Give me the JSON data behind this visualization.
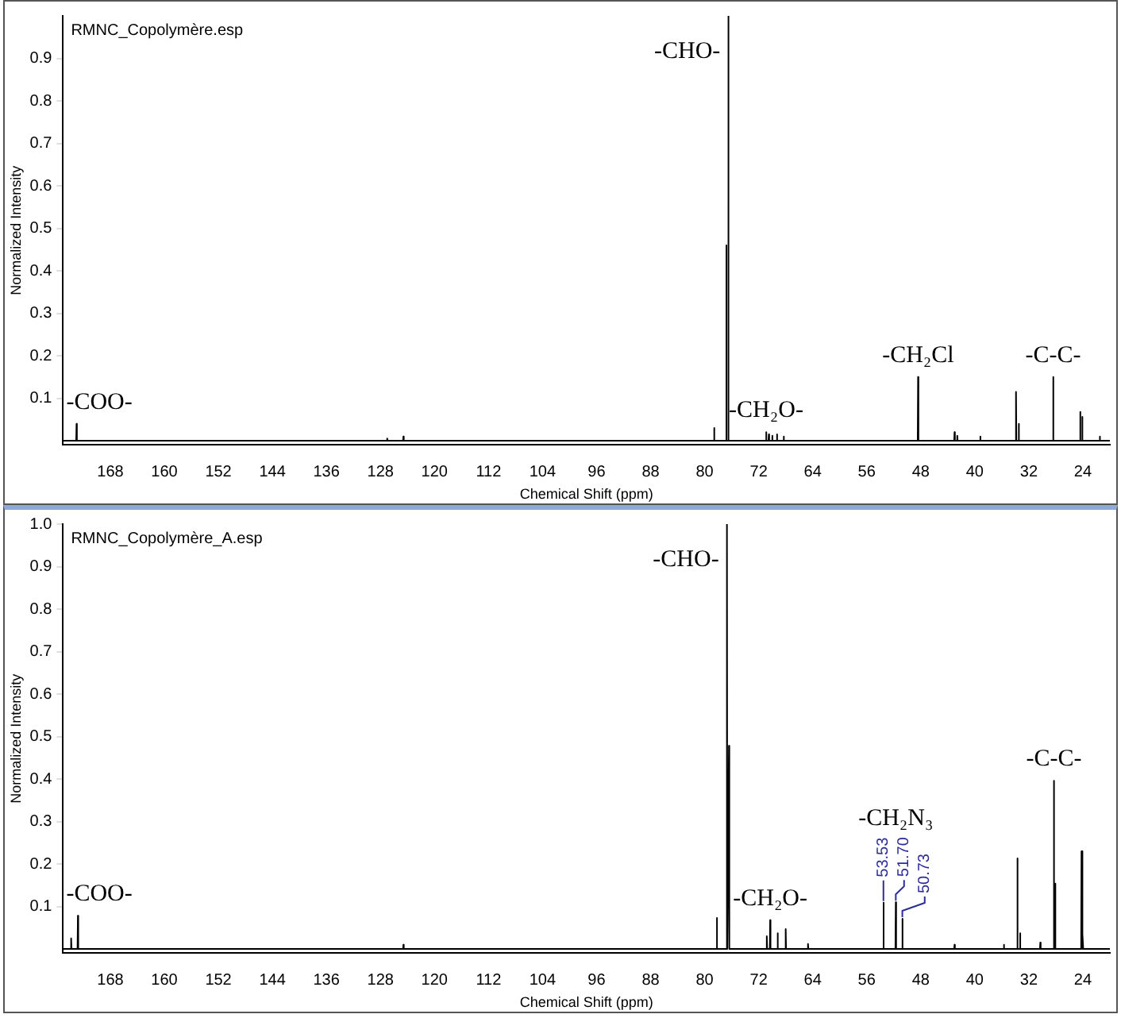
{
  "chart_data": [
    {
      "type": "line",
      "xlabel": "Chemical Shift (ppm)",
      "ylabel": "Normalized Intensity",
      "xlim": [
        175,
        20
      ],
      "xticks": [
        168,
        160,
        152,
        144,
        136,
        128,
        120,
        112,
        104,
        96,
        88,
        80,
        72,
        64,
        56,
        48,
        40,
        32,
        24
      ],
      "ylim": [
        -0.01,
        1.0
      ],
      "yticks": [
        0.1,
        0.2,
        0.3,
        0.4,
        0.5,
        0.6,
        0.7,
        0.8,
        0.9
      ],
      "grid": false,
      "legend": false,
      "marker": "none",
      "line_style": "solid",
      "annotations": [
        "RMNC_Copolymère.esp",
        {
          "text": "-COO-",
          "x": 173,
          "y": 0.04
        },
        {
          "text": "-CHO-",
          "x": 76.5,
          "y": 1.0
        },
        {
          "text": "-CH₂O-",
          "x": 70.9,
          "y": 0.02
        },
        {
          "text": "-CH₂Cl",
          "x": 48.4,
          "y": 0.15
        },
        {
          "text": "-C-C-",
          "x": 28.4,
          "y": 0.15
        }
      ],
      "series": [
        {
          "color": "#000000",
          "x": [
            175,
            173.05,
            173,
            172.95,
            127.05,
            127,
            126.95,
            124.65,
            124.6,
            124.55,
            78.65,
            78.6,
            78.55,
            76.85,
            76.8,
            76.75,
            76.55,
            76.5,
            76.45,
            70.95,
            70.9,
            70.85,
            70.55,
            70.5,
            70.45,
            70.05,
            70,
            69.95,
            69.35,
            69.3,
            69.25,
            68.35,
            68.3,
            68.25,
            48.45,
            48.4,
            48.35,
            43.05,
            43,
            42.95,
            42.65,
            42.6,
            42.55,
            39.25,
            39.2,
            39.15,
            33.95,
            33.9,
            33.85,
            33.55,
            33.5,
            33.45,
            28.45,
            28.4,
            28.35,
            24.45,
            24.4,
            24.35,
            24.15,
            24.1,
            24.05,
            21.55,
            21.5,
            21.45,
            20
          ],
          "values": [
            0,
            0,
            0.04,
            0,
            0,
            0.005,
            0,
            0,
            0.01,
            0,
            0,
            0.03,
            0,
            0,
            0.46,
            0,
            0,
            1.0,
            0,
            0,
            0.02,
            0,
            0,
            0.015,
            0,
            0,
            0.012,
            0,
            0,
            0.015,
            0,
            0,
            0.01,
            0,
            0,
            0.15,
            0,
            0,
            0.02,
            0,
            0,
            0.012,
            0,
            0,
            0.01,
            0,
            0,
            0.115,
            0,
            0,
            0.04,
            0,
            0,
            0.15,
            0,
            0,
            0.068,
            0,
            0,
            0.056,
            0,
            0,
            0.01,
            0,
            0
          ]
        }
      ]
    },
    {
      "type": "line",
      "xlabel": "Chemical Shift (ppm)",
      "ylabel": "Normalized Intensity",
      "xlim": [
        175,
        20
      ],
      "xticks": [
        168,
        160,
        152,
        144,
        136,
        128,
        120,
        112,
        104,
        96,
        88,
        80,
        72,
        64,
        56,
        48,
        40,
        32,
        24
      ],
      "ylim": [
        -0.01,
        1.0
      ],
      "yticks": [
        0.1,
        0.2,
        0.3,
        0.4,
        0.5,
        0.6,
        0.7,
        0.8,
        0.9,
        {
          "value": 1.0,
          "label": "1.0"
        }
      ],
      "grid": false,
      "legend": false,
      "marker": "none",
      "line_style": "solid",
      "annotations": [
        "RMNC_Copolymère_A.esp",
        {
          "text": "-COO-",
          "x": 172.8,
          "y": 0.078
        },
        {
          "text": "-CHO-",
          "x": 76.7,
          "y": 1.0
        },
        {
          "text": "-CH₂O-",
          "x": 70.3,
          "y": 0.068
        },
        {
          "text": "-CH₂N₃",
          "x": 51.7,
          "y": 0.11
        },
        {
          "text": "-C-C-",
          "x": 28.3,
          "y": 0.396
        },
        {
          "text": "53.53",
          "x": 53.53,
          "y": 0.109
        },
        {
          "text": "51.70",
          "x": 51.7,
          "y": 0.11
        },
        {
          "text": "50.73",
          "x": 50.73,
          "y": 0.071
        }
      ],
      "series": [
        {
          "color": "#000000",
          "x": [
            175,
            173.85,
            173.8,
            173.75,
            172.85,
            172.8,
            172.75,
            124.65,
            124.6,
            124.55,
            78.25,
            78.2,
            78.15,
            76.75,
            76.7,
            76.65,
            76.45,
            76.4,
            76.35,
            70.85,
            70.8,
            70.75,
            70.35,
            70.3,
            70.25,
            69.25,
            69.2,
            69.15,
            68.05,
            68,
            67.95,
            64.75,
            64.7,
            64.65,
            53.58,
            53.53,
            53.48,
            51.75,
            51.7,
            51.65,
            50.78,
            50.73,
            50.68,
            43.05,
            43,
            42.95,
            35.75,
            35.7,
            35.65,
            33.75,
            33.7,
            33.65,
            33.35,
            33.3,
            33.25,
            30.35,
            30.3,
            30.25,
            28.35,
            28.3,
            28.25,
            28.15,
            28.1,
            28.05,
            24.25,
            24.2,
            24.15,
            24.05,
            24,
            23.95,
            20
          ],
          "values": [
            0,
            0,
            0.025,
            0,
            0,
            0.078,
            0,
            0,
            0.01,
            0,
            0,
            0.073,
            0,
            0,
            1.0,
            0,
            0,
            0.478,
            0,
            0,
            0.03,
            0,
            0,
            0.068,
            0,
            0,
            0.037,
            0,
            0,
            0.047,
            0,
            0,
            0.012,
            0,
            0,
            0.109,
            0,
            0,
            0.11,
            0,
            0,
            0.071,
            0,
            0,
            0.01,
            0,
            0,
            0.01,
            0,
            0,
            0.213,
            0,
            0,
            0.037,
            0,
            0,
            0.015,
            0,
            0,
            0.396,
            0,
            0,
            0.154,
            0,
            0,
            0.23,
            0,
            0,
            0.035,
            0,
            0
          ]
        }
      ]
    }
  ]
}
